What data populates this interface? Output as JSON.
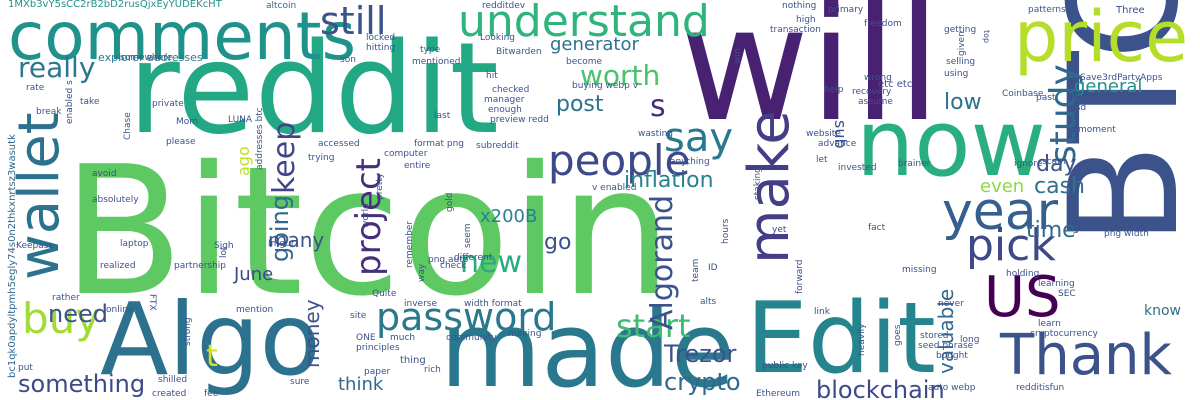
{
  "words": [
    {
      "text": "Bitcoin"
    },
    {
      "text": "will"
    },
    {
      "text": "reddit"
    },
    {
      "text": "BTC"
    },
    {
      "text": "made"
    },
    {
      "text": "Algo"
    },
    {
      "text": "Edit"
    },
    {
      "text": "comments"
    },
    {
      "text": "now"
    },
    {
      "text": "price"
    },
    {
      "text": "Thank"
    },
    {
      "text": "wallet"
    },
    {
      "text": "US"
    },
    {
      "text": "understand"
    },
    {
      "text": "make"
    },
    {
      "text": "people"
    },
    {
      "text": "password"
    },
    {
      "text": "year"
    },
    {
      "text": "pick"
    },
    {
      "text": "buy"
    },
    {
      "text": "still"
    },
    {
      "text": "say"
    },
    {
      "text": "study"
    },
    {
      "text": "project"
    },
    {
      "text": "really"
    },
    {
      "text": "worth"
    },
    {
      "text": "keep"
    },
    {
      "text": "start"
    },
    {
      "text": "new"
    },
    {
      "text": "Algorand"
    },
    {
      "text": "going"
    },
    {
      "text": "crypto"
    },
    {
      "text": "Trezor"
    },
    {
      "text": "blockchain"
    },
    {
      "text": "something"
    },
    {
      "text": "need"
    },
    {
      "text": "post"
    },
    {
      "text": "inflation"
    },
    {
      "text": "generator"
    },
    {
      "text": "cash"
    },
    {
      "text": "time"
    },
    {
      "text": "day"
    },
    {
      "text": "general"
    },
    {
      "text": "low"
    },
    {
      "text": "x200B"
    },
    {
      "text": "go"
    },
    {
      "text": "many"
    },
    {
      "text": "June"
    },
    {
      "text": "money"
    },
    {
      "text": "valuable"
    },
    {
      "text": "think"
    },
    {
      "text": "even"
    },
    {
      "text": "sub"
    },
    {
      "text": "ago"
    },
    {
      "text": "know"
    },
    {
      "text": "t"
    },
    {
      "text": "s"
    },
    {
      "text": "1MXb3vY5sCC2rB2bD2rusQjxEyYUDEKcHT"
    },
    {
      "text": "bc1qk0apdyltpmh5egly74s0n2thkxnrtsz3wasutk"
    },
    {
      "text": "altcoin"
    },
    {
      "text": "redditdev"
    },
    {
      "text": "nothing"
    },
    {
      "text": "primary"
    },
    {
      "text": "Three"
    },
    {
      "text": "patterns"
    },
    {
      "text": "Save3rdPartyApps"
    },
    {
      "text": "selling"
    },
    {
      "text": "top"
    },
    {
      "text": "getting"
    },
    {
      "text": "given"
    },
    {
      "text": "explorer addresses"
    },
    {
      "text": "locked"
    },
    {
      "text": "hitting"
    },
    {
      "text": "type"
    },
    {
      "text": "Looking"
    },
    {
      "text": "Bitwarden"
    },
    {
      "text": "win"
    },
    {
      "text": "transaction"
    },
    {
      "text": "high"
    },
    {
      "text": "freedom"
    },
    {
      "text": "somewhere"
    },
    {
      "text": "son"
    },
    {
      "text": "mentioned"
    },
    {
      "text": "become"
    },
    {
      "text": "rate"
    },
    {
      "text": "enabled s"
    },
    {
      "text": "take"
    },
    {
      "text": "hit"
    },
    {
      "text": "checked"
    },
    {
      "text": "manager"
    },
    {
      "text": "buying webp v"
    },
    {
      "text": "etc etc"
    },
    {
      "text": "wrong"
    },
    {
      "text": "help"
    },
    {
      "text": "recovery"
    },
    {
      "text": "Coinbase"
    },
    {
      "text": "using"
    },
    {
      "text": "past"
    },
    {
      "text": "miners"
    },
    {
      "text": "usd"
    },
    {
      "text": "break"
    },
    {
      "text": "private"
    },
    {
      "text": "Chase"
    },
    {
      "text": "Mom"
    },
    {
      "text": "LUNA"
    },
    {
      "text": "last"
    },
    {
      "text": "enough"
    },
    {
      "text": "preview redd"
    },
    {
      "text": "assume"
    },
    {
      "text": "moment"
    },
    {
      "text": "please"
    },
    {
      "text": "accessed"
    },
    {
      "text": "addresses btc"
    },
    {
      "text": "wasting"
    },
    {
      "text": "website"
    },
    {
      "text": "advance"
    },
    {
      "text": "computer"
    },
    {
      "text": "format png"
    },
    {
      "text": "subreddit"
    },
    {
      "text": "anything"
    },
    {
      "text": "scam"
    },
    {
      "text": "let"
    },
    {
      "text": "trying"
    },
    {
      "text": "entire"
    },
    {
      "text": "invested"
    },
    {
      "text": "brainer"
    },
    {
      "text": "v enabled"
    },
    {
      "text": "ignore"
    },
    {
      "text": "avoid"
    },
    {
      "text": "absolutely"
    },
    {
      "text": "Keepass"
    },
    {
      "text": "Sigh"
    },
    {
      "text": "pretty"
    },
    {
      "text": "gold"
    },
    {
      "text": "world"
    },
    {
      "text": "yet"
    },
    {
      "text": "staking"
    },
    {
      "text": "hours"
    },
    {
      "text": "fact"
    },
    {
      "text": "want"
    },
    {
      "text": "png width"
    },
    {
      "text": "laptop"
    },
    {
      "text": "Imgur"
    },
    {
      "text": "png auto"
    },
    {
      "text": "way"
    },
    {
      "text": "different"
    },
    {
      "text": "remember"
    },
    {
      "text": "seem"
    },
    {
      "text": "lot"
    },
    {
      "text": "check"
    },
    {
      "text": "ID"
    },
    {
      "text": "missing"
    },
    {
      "text": "holding"
    },
    {
      "text": "learning"
    },
    {
      "text": "realized"
    },
    {
      "text": "partnership"
    },
    {
      "text": "rather"
    },
    {
      "text": "FTX"
    },
    {
      "text": "online"
    },
    {
      "text": "Quite"
    },
    {
      "text": "inverse"
    },
    {
      "text": "width format"
    },
    {
      "text": "alts"
    },
    {
      "text": "team"
    },
    {
      "text": "forward"
    },
    {
      "text": "link"
    },
    {
      "text": "never"
    },
    {
      "text": "SEC"
    },
    {
      "text": "learn"
    },
    {
      "text": "cryptocurrency"
    },
    {
      "text": "mention"
    },
    {
      "text": "site"
    },
    {
      "text": "strong"
    },
    {
      "text": "ONE"
    },
    {
      "text": "much"
    },
    {
      "text": "principles"
    },
    {
      "text": "community"
    },
    {
      "text": "making"
    },
    {
      "text": "heavily"
    },
    {
      "text": "goes"
    },
    {
      "text": "stored"
    },
    {
      "text": "seed phrase"
    },
    {
      "text": "long"
    },
    {
      "text": "thing"
    },
    {
      "text": "public key"
    },
    {
      "text": "bought"
    },
    {
      "text": "put"
    },
    {
      "text": "rich"
    },
    {
      "text": "paper"
    },
    {
      "text": "shilled"
    },
    {
      "text": "sure"
    },
    {
      "text": "created"
    },
    {
      "text": "fee"
    },
    {
      "text": "Ethereum"
    },
    {
      "text": "auto webp"
    },
    {
      "text": "redditisfun"
    }
  ]
}
